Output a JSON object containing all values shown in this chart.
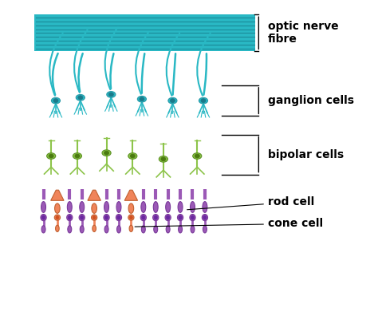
{
  "background_color": "#ffffff",
  "optic_nerve_color": "#29b8c4",
  "ganglion_color": "#29b8c4",
  "bipolar_color": "#8dc44a",
  "rod_color": "#9b59b6",
  "cone_color": "#f0845a",
  "outline_color": "#333333",
  "label_color": "#000000",
  "labels": {
    "optic_nerve": "optic nerve\nfibre",
    "ganglion": "ganglion cells",
    "bipolar": "bipolar cells",
    "rod": "rod cell",
    "cone": "cone cell"
  },
  "figsize": [
    4.74,
    3.91
  ],
  "dpi": 100
}
